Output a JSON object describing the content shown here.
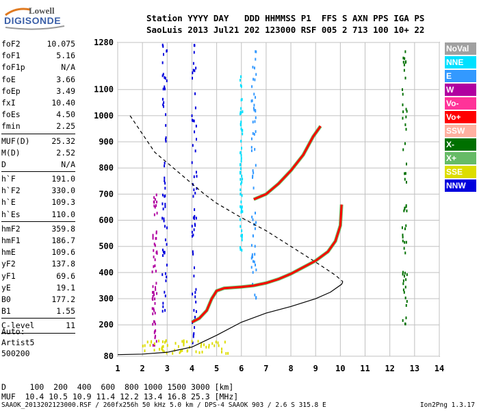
{
  "logo": {
    "line1": "Lowell",
    "line2": "DIGISONDE"
  },
  "header": {
    "line1": "Station YYYY DAY   DDD HHMMSS P1  FFS S AXN PPS IGA PS",
    "line2": "SaoLuis 2013 Jul21 202 123000 RSF 005 2 713 100 10+ 22"
  },
  "params_groups": [
    [
      {
        "key": "foF2",
        "value": "10.075"
      },
      {
        "key": "foF1",
        "value": "5.16"
      },
      {
        "key": "foF1p",
        "value": "N/A"
      },
      {
        "key": "foE",
        "value": "3.66"
      },
      {
        "key": "foEp",
        "value": "3.49"
      },
      {
        "key": "fxI",
        "value": "10.40"
      },
      {
        "key": "foEs",
        "value": "4.50"
      },
      {
        "key": "fmin",
        "value": "2.25"
      }
    ],
    [
      {
        "key": "MUF(D)",
        "value": "25.32"
      },
      {
        "key": "M(D)",
        "value": "2.52"
      },
      {
        "key": "D",
        "value": "N/A"
      }
    ],
    [
      {
        "key": "h`F",
        "value": "191.0"
      },
      {
        "key": "h`F2",
        "value": "330.0"
      },
      {
        "key": "h`E",
        "value": "109.3"
      },
      {
        "key": "h`Es",
        "value": "110.0"
      }
    ],
    [
      {
        "key": "hmF2",
        "value": "359.8"
      },
      {
        "key": "hmF1",
        "value": "186.7"
      },
      {
        "key": "hmE",
        "value": "109.6"
      },
      {
        "key": "yF2",
        "value": "137.8"
      },
      {
        "key": "yF1",
        "value": "69.6"
      },
      {
        "key": "yE",
        "value": "19.1"
      },
      {
        "key": "B0",
        "value": "177.2"
      },
      {
        "key": "B1",
        "value": "1.55"
      }
    ],
    [
      {
        "key": "C-level",
        "value": "11"
      }
    ]
  ],
  "auto": {
    "line1": "Auto:",
    "line2": "Artist5",
    "line3": "500200"
  },
  "legend": [
    {
      "label": "NoVal",
      "color": "#a0a0a0"
    },
    {
      "label": "NNE",
      "color": "#00e0ff"
    },
    {
      "label": "E",
      "color": "#3399ff"
    },
    {
      "label": "W",
      "color": "#b000a0"
    },
    {
      "label": "Vo-",
      "color": "#ff3399"
    },
    {
      "label": "Vo+",
      "color": "#ff0000"
    },
    {
      "label": "SSW",
      "color": "#ffb0a0"
    },
    {
      "label": "X-",
      "color": "#007000"
    },
    {
      "label": "X+",
      "color": "#66bb66"
    },
    {
      "label": "SSE",
      "color": "#dddd00"
    },
    {
      "label": "NNW",
      "color": "#0000dd"
    }
  ],
  "muf_table": {
    "line1": "D     100  200  400  600  800 1000 1500 3000 [km]",
    "line2": "MUF  10.4 10.5 10.9 11.4 12.2 13.4 16.8 25.3 [MHz]"
  },
  "footer": {
    "left": "SAAOK_2013202123000.RSF / 260fx256h 50 kHz 5.0 km / DPS-4 SAAOK 903 / 2.6 S 315.8 E",
    "right": "Ion2Png 1.3.17"
  },
  "chart_data": {
    "type": "scatter",
    "xlim": [
      1,
      14
    ],
    "ylim": [
      80,
      1280
    ],
    "x_ticks": [
      "1",
      "2",
      "3",
      "4",
      "5",
      "6",
      "7",
      "8",
      "9",
      "10",
      "11",
      "12",
      "13",
      "14"
    ],
    "y_ticks": [
      {
        "value": 80,
        "label": "80"
      },
      {
        "value": 200,
        "label": "200"
      },
      {
        "value": 300,
        "label": "300"
      },
      {
        "value": 400,
        "label": "400"
      },
      {
        "value": 500,
        "label": "500"
      },
      {
        "value": 600,
        "label": "600"
      },
      {
        "value": 700,
        "label": "700"
      },
      {
        "value": 800,
        "label": "800"
      },
      {
        "value": 900,
        "label": "900"
      },
      {
        "value": 1000,
        "label": "1000"
      },
      {
        "value": 1100,
        "label": "1100"
      },
      {
        "value": 1280,
        "label": "1280"
      }
    ],
    "grid": true,
    "series": [
      {
        "color": "#000000",
        "style": "solid",
        "points": [
          [
            1,
            86
          ],
          [
            2,
            88
          ],
          [
            3,
            95
          ],
          [
            4,
            115
          ],
          [
            5,
            160
          ],
          [
            6,
            210
          ],
          [
            7,
            245
          ],
          [
            8,
            270
          ],
          [
            9,
            300
          ],
          [
            9.6,
            325
          ],
          [
            10.05,
            355
          ],
          [
            10.1,
            365
          ]
        ]
      },
      {
        "color": "#000000",
        "style": "dashed",
        "points": [
          [
            1.5,
            1000
          ],
          [
            2,
            930
          ],
          [
            2.5,
            860
          ],
          [
            3,
            820
          ],
          [
            3.5,
            780
          ],
          [
            4,
            740
          ],
          [
            4.5,
            700
          ],
          [
            5,
            665
          ],
          [
            6,
            610
          ],
          [
            7,
            560
          ],
          [
            8,
            500
          ],
          [
            9,
            440
          ],
          [
            9.8,
            390
          ],
          [
            10.1,
            365
          ]
        ]
      },
      {
        "color": "#ff0000",
        "style": "trace",
        "points": [
          [
            4,
            210
          ],
          [
            4.3,
            225
          ],
          [
            4.6,
            255
          ],
          [
            4.8,
            300
          ],
          [
            5,
            330
          ],
          [
            5.3,
            340
          ],
          [
            6,
            345
          ],
          [
            6.5,
            350
          ],
          [
            7,
            360
          ],
          [
            7.5,
            375
          ],
          [
            8,
            395
          ],
          [
            8.5,
            420
          ],
          [
            9,
            445
          ],
          [
            9.5,
            480
          ],
          [
            9.8,
            520
          ],
          [
            10,
            580
          ],
          [
            10.05,
            660
          ]
        ]
      },
      {
        "color": "#ff0000",
        "style": "trace",
        "points": [
          [
            6.5,
            680
          ],
          [
            7,
            700
          ],
          [
            7.5,
            740
          ],
          [
            8,
            790
          ],
          [
            8.5,
            850
          ],
          [
            8.9,
            920
          ],
          [
            9.2,
            960
          ]
        ]
      }
    ],
    "scatter_clusters": [
      {
        "color": "#0000dd",
        "x_range": [
          2.8,
          3.0
        ],
        "y_range": [
          230,
          1280
        ]
      },
      {
        "color": "#0000dd",
        "x_range": [
          4.0,
          4.2
        ],
        "y_range": [
          130,
          1280
        ]
      },
      {
        "color": "#b000a0",
        "x_range": [
          2.4,
          2.6
        ],
        "y_range": [
          120,
          700
        ]
      },
      {
        "color": "#00e0ff",
        "x_range": [
          5.95,
          6.05
        ],
        "y_range": [
          480,
          1150
        ]
      },
      {
        "color": "#3399ff",
        "x_range": [
          6.4,
          6.6
        ],
        "y_range": [
          300,
          1260
        ]
      },
      {
        "color": "#007000",
        "x_range": [
          12.5,
          12.7
        ],
        "y_range": [
          200,
          1280
        ]
      },
      {
        "color": "#dddd00",
        "x_range": [
          2.0,
          5.5
        ],
        "y_range": [
          90,
          140
        ]
      }
    ]
  }
}
